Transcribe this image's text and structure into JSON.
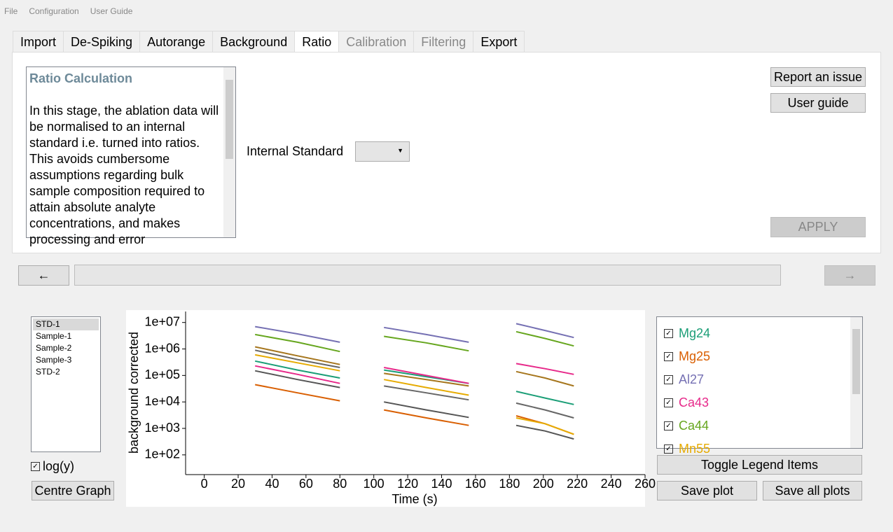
{
  "menu": [
    "File",
    "Configuration",
    "User Guide"
  ],
  "tabs": [
    {
      "label": "Import",
      "state": "normal"
    },
    {
      "label": "De-Spiking",
      "state": "normal"
    },
    {
      "label": "Autorange",
      "state": "normal"
    },
    {
      "label": "Background",
      "state": "normal"
    },
    {
      "label": "Ratio",
      "state": "active"
    },
    {
      "label": "Calibration",
      "state": "disabled"
    },
    {
      "label": "Filtering",
      "state": "disabled"
    },
    {
      "label": "Export",
      "state": "normal"
    }
  ],
  "info_panel": {
    "title": "Ratio Calculation",
    "text": "In this stage, the ablation data will be normalised to an internal standard i.e. turned into ratios. This avoids cumbersome assumptions regarding bulk sample composition required to attain absolute analyte concentrations, and makes processing and error"
  },
  "internal_standard_label": "Internal Standard",
  "buttons": {
    "report": "Report an issue",
    "guide": "User guide",
    "apply": "APPLY",
    "back": "←",
    "forward": "→",
    "centre": "Centre Graph",
    "toggle_legend": "Toggle Legend Items",
    "save_plot": "Save plot",
    "save_all": "Save all plots"
  },
  "samples": [
    "STD-1",
    "Sample-1",
    "Sample-2",
    "Sample-3",
    "STD-2"
  ],
  "log_y_label": "log(y)",
  "chart_data": {
    "type": "line",
    "xlabel": "Time (s)",
    "ylabel": "background corrected",
    "log_y": true,
    "x": [
      30,
      55,
      80,
      82,
      106,
      131,
      156,
      158,
      184,
      201,
      218
    ],
    "xlim": [
      -11,
      260
    ],
    "xticks": [
      0,
      20,
      40,
      60,
      80,
      100,
      120,
      140,
      160,
      180,
      200,
      220,
      240,
      260
    ],
    "ylim": [
      18,
      26000000
    ],
    "yticks": [
      {
        "value": 100,
        "label": "1e+02"
      },
      {
        "value": 1000,
        "label": "1e+03"
      },
      {
        "value": 10000,
        "label": "1e+04"
      },
      {
        "value": 100000,
        "label": "1e+05"
      },
      {
        "value": 1000000,
        "label": "1e+06"
      },
      {
        "value": 10000000,
        "label": "1e+07"
      }
    ],
    "series": [
      {
        "name": "Mg24",
        "color": "#1b9e77",
        "values": [
          350000,
          160000,
          80000,
          null,
          160000,
          90000,
          50000,
          null,
          25000,
          14000,
          8000
        ]
      },
      {
        "name": "Mg25",
        "color": "#d95f02",
        "values": [
          45000,
          22000,
          11000,
          null,
          5000,
          2500,
          1300,
          null,
          3000,
          1500,
          600
        ]
      },
      {
        "name": "Al27",
        "color": "#7570b3",
        "values": [
          7000000,
          3700000,
          1800000,
          null,
          6500000,
          3500000,
          1800000,
          null,
          9000000,
          5000000,
          2700000
        ]
      },
      {
        "name": "Ca43",
        "color": "#e7298a",
        "values": [
          230000,
          110000,
          50000,
          null,
          200000,
          100000,
          50000,
          null,
          280000,
          180000,
          110000
        ]
      },
      {
        "name": "Ca44",
        "color": "#66a61e",
        "values": [
          3500000,
          1800000,
          800000,
          null,
          3000000,
          1700000,
          850000,
          null,
          4500000,
          2500000,
          1300000
        ]
      },
      {
        "name": "Mn55",
        "color": "#e6ab02",
        "values": [
          600000,
          300000,
          150000,
          null,
          70000,
          35000,
          18000,
          null,
          2500,
          1500,
          600
        ]
      },
      {
        "color": "#a6761d",
        "values": [
          1200000,
          550000,
          260000,
          null,
          120000,
          70000,
          40000,
          null,
          140000,
          80000,
          40000
        ]
      },
      {
        "color": "#666666",
        "values": [
          900000,
          400000,
          200000,
          null,
          40000,
          22000,
          12000,
          null,
          9000,
          5000,
          2500
        ]
      },
      {
        "color": "#555555",
        "values": [
          150000,
          70000,
          35000,
          null,
          10000,
          5000,
          2600,
          null,
          1300,
          800,
          400
        ]
      }
    ]
  }
}
